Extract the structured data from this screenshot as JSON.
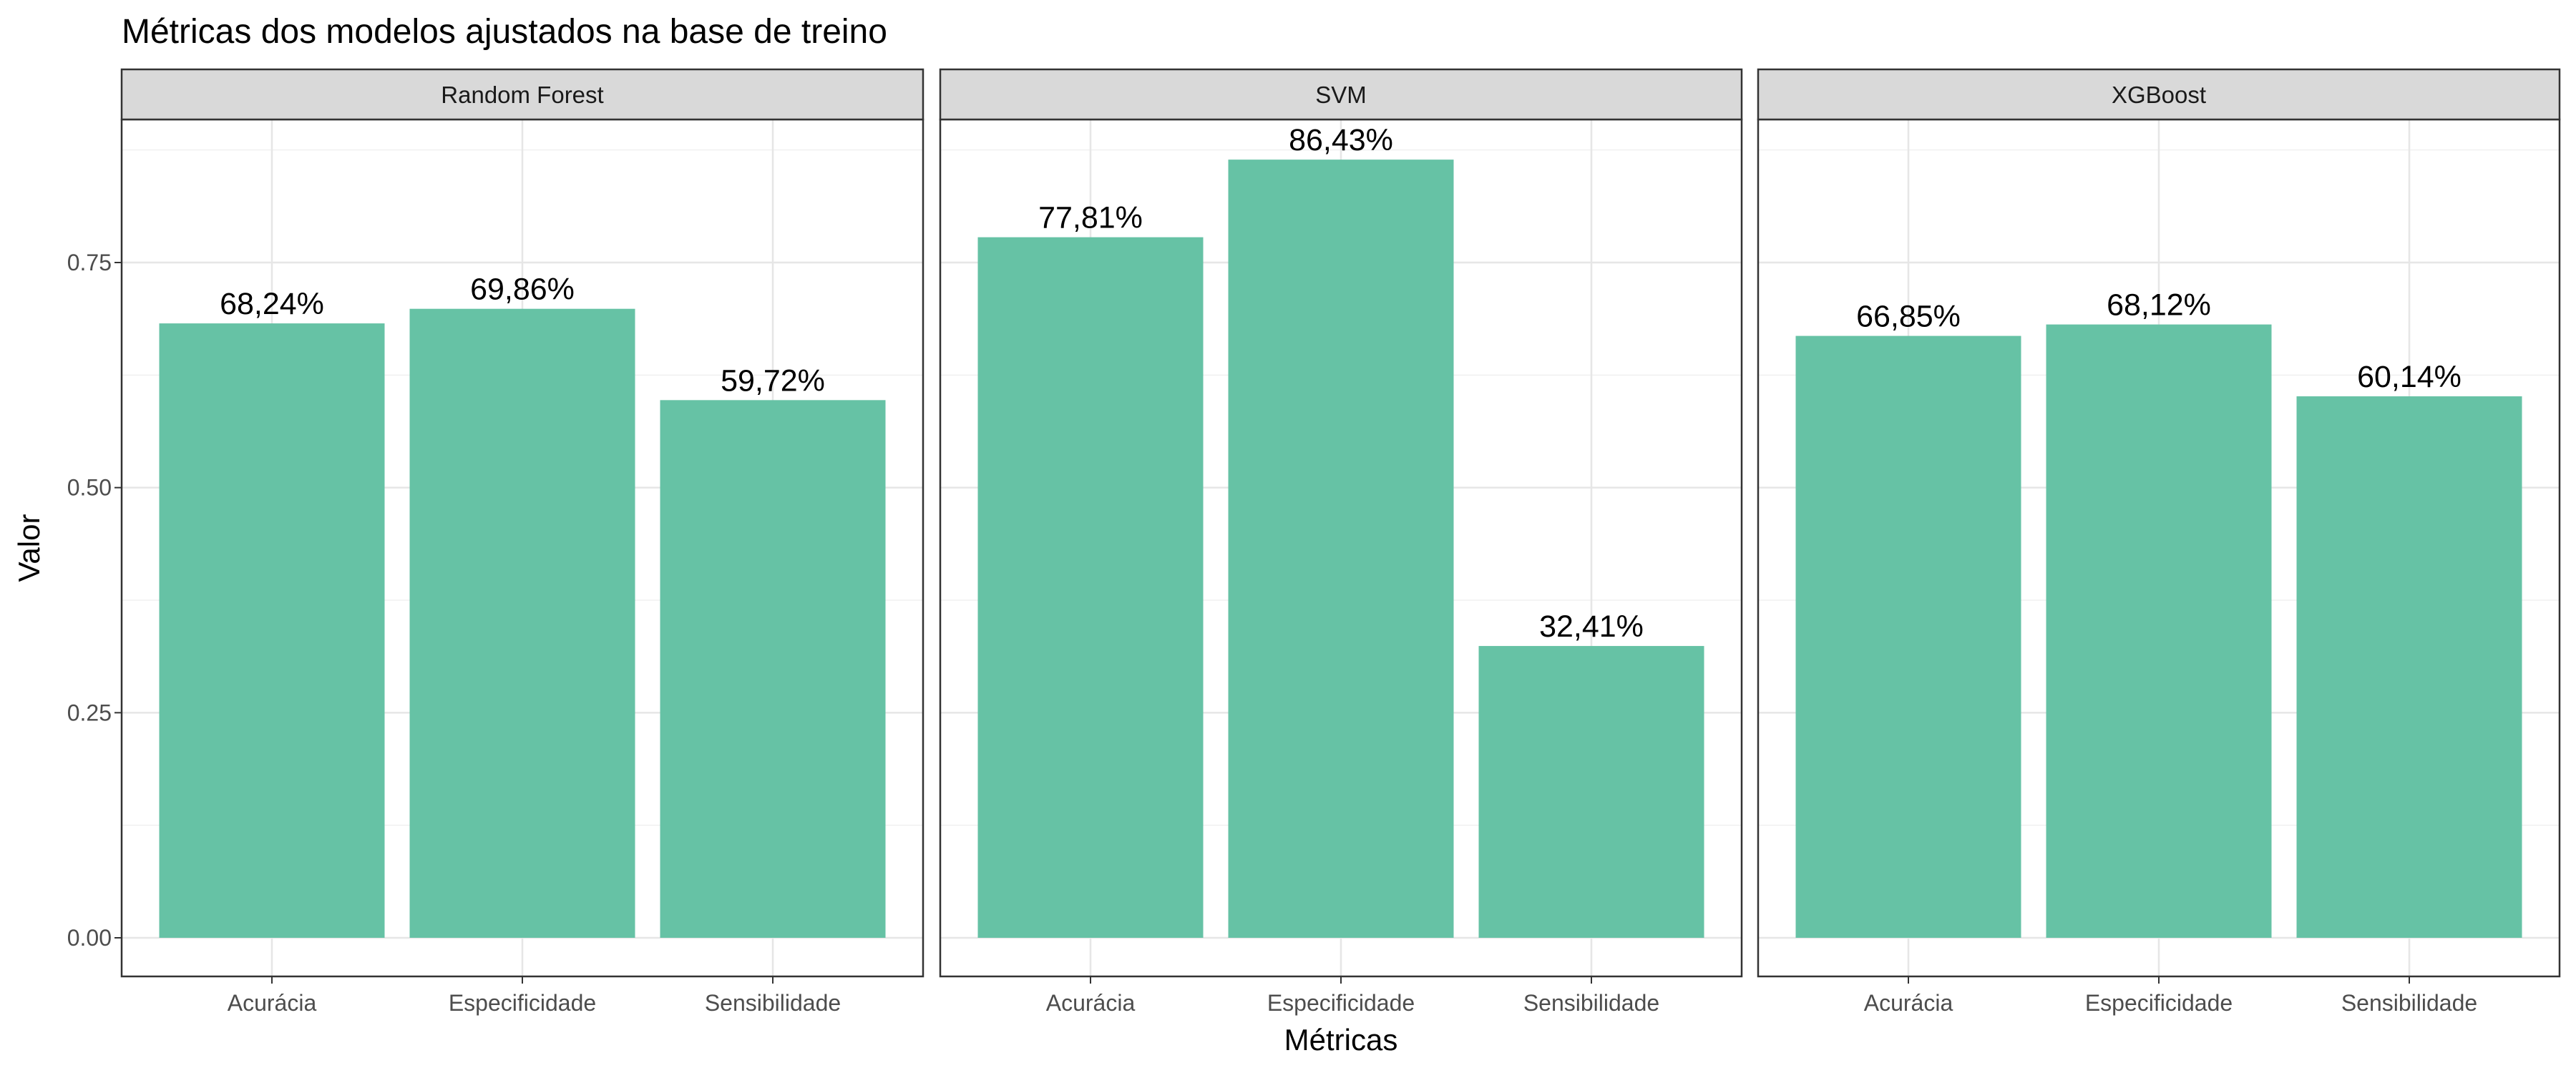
{
  "chart_data": {
    "type": "bar",
    "title": "Métricas dos modelos ajustados na base de treino",
    "xlabel": "Métricas",
    "ylabel": "Valor",
    "ylim": [
      0,
      0.9
    ],
    "yticks": [
      0,
      0.25,
      0.5,
      0.75
    ],
    "ytick_labels": [
      "0.00",
      "0.25",
      "0.50",
      "0.75"
    ],
    "grid": true,
    "bar_color": "#66C2A5",
    "categories": [
      "Acurácia",
      "Especificidade",
      "Sensibilidade"
    ],
    "facets": [
      {
        "name": "Random Forest",
        "values": [
          0.6824,
          0.6986,
          0.5972
        ],
        "labels": [
          "68,24%",
          "69,86%",
          "59,72%"
        ]
      },
      {
        "name": "SVM",
        "values": [
          0.7781,
          0.8643,
          0.3241
        ],
        "labels": [
          "77,81%",
          "86,43%",
          "32,41%"
        ]
      },
      {
        "name": "XGBoost",
        "values": [
          0.6685,
          0.6812,
          0.6014
        ],
        "labels": [
          "66,85%",
          "68,12%",
          "60,14%"
        ]
      }
    ]
  }
}
